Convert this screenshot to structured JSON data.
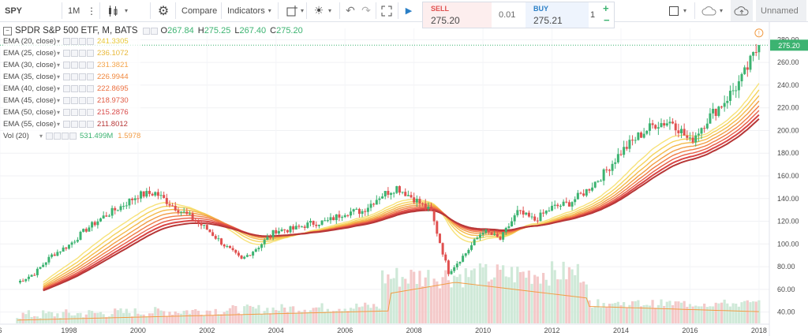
{
  "toolbar": {
    "symbol": "SPY",
    "interval": "1M",
    "compare_label": "Compare",
    "indicators_label": "Indicators",
    "layout_name": "Unnamed"
  },
  "trade": {
    "sell_label": "SELL",
    "sell_price": "275.20",
    "spread": "0.01",
    "buy_label": "BUY",
    "buy_price": "275.21",
    "quantity": "1",
    "plus": "+",
    "minus": "−"
  },
  "header": {
    "title": "SPDR S&P 500 ETF, M, BATS",
    "o_label": "O",
    "o_value": "267.84",
    "h_label": "H",
    "h_value": "275.25",
    "l_label": "L",
    "l_value": "267.40",
    "c_label": "C",
    "c_value": "275.20"
  },
  "indicators": [
    {
      "name": "EMA (20, close)",
      "value": "241.3305",
      "color": "#f7e27a"
    },
    {
      "name": "EMA (25, close)",
      "value": "236.1072",
      "color": "#f5d25a"
    },
    {
      "name": "EMA (30, close)",
      "value": "231.3821",
      "color": "#f4b94a"
    },
    {
      "name": "EMA (35, close)",
      "value": "226.9944",
      "color": "#f29c45"
    },
    {
      "name": "EMA (40, close)",
      "value": "222.8695",
      "color": "#f07c45"
    },
    {
      "name": "EMA (45, close)",
      "value": "218.9730",
      "color": "#e85d45"
    },
    {
      "name": "EMA (50, close)",
      "value": "215.2876",
      "color": "#d84545"
    },
    {
      "name": "EMA (55, close)",
      "value": "211.8012",
      "color": "#b73737"
    }
  ],
  "volume": {
    "name": "Vol (20)",
    "value1": "531.499M",
    "value2": "1.5978",
    "color1": "#3cb371",
    "color2": "#f29c45"
  },
  "price_label": "275.20",
  "colors": {
    "up": "#3cb371",
    "down": "#e0504f",
    "accent": "#3cb371",
    "vol_up": "#cfe9d8",
    "vol_down": "#f4c9c9"
  },
  "chart_data": {
    "type": "line",
    "x_ticks": [
      "6",
      "1998",
      "2000",
      "2002",
      "2004",
      "2006",
      "2008",
      "2010",
      "2012",
      "2014",
      "2016",
      "2018"
    ],
    "y_ticks": [
      "40.00",
      "60.00",
      "80.00",
      "100.00",
      "120.00",
      "140.00",
      "160.00",
      "180.00",
      "200.00",
      "220.00",
      "240.00",
      "260.00",
      "280.00"
    ],
    "ylim": [
      30,
      290
    ],
    "xlim": [
      1996.0,
      2018.3
    ],
    "price_series": {
      "name": "SPY",
      "x": [
        1996.5,
        1997.0,
        1997.5,
        1998.0,
        1998.5,
        1999.0,
        1999.5,
        2000.0,
        2000.5,
        2001.0,
        2001.5,
        2002.0,
        2002.5,
        2003.0,
        2003.5,
        2004.0,
        2004.5,
        2005.0,
        2005.5,
        2006.0,
        2006.5,
        2007.0,
        2007.5,
        2008.0,
        2008.5,
        2009.0,
        2009.5,
        2010.0,
        2010.5,
        2011.0,
        2011.5,
        2012.0,
        2012.5,
        2013.0,
        2013.5,
        2014.0,
        2014.5,
        2015.0,
        2015.5,
        2016.0,
        2016.5,
        2017.0,
        2017.5,
        2018.0
      ],
      "y": [
        66,
        74,
        90,
        99,
        113,
        124,
        133,
        143,
        145,
        134,
        124,
        113,
        99,
        86,
        98,
        112,
        113,
        118,
        120,
        128,
        129,
        142,
        150,
        140,
        128,
        75,
        92,
        112,
        104,
        128,
        121,
        132,
        136,
        147,
        162,
        181,
        195,
        206,
        208,
        190,
        210,
        226,
        245,
        275.2
      ]
    },
    "ema": [
      {
        "name": "EMA (20, close)",
        "last": 241.33
      },
      {
        "name": "EMA (25, close)",
        "last": 236.11
      },
      {
        "name": "EMA (30, close)",
        "last": 231.38
      },
      {
        "name": "EMA (35, close)",
        "last": 226.99
      },
      {
        "name": "EMA (40, close)",
        "last": 222.87
      },
      {
        "name": "EMA (45, close)",
        "last": 218.97
      },
      {
        "name": "EMA (50, close)",
        "last": 215.29
      },
      {
        "name": "EMA (55, close)",
        "last": 211.8
      }
    ]
  }
}
